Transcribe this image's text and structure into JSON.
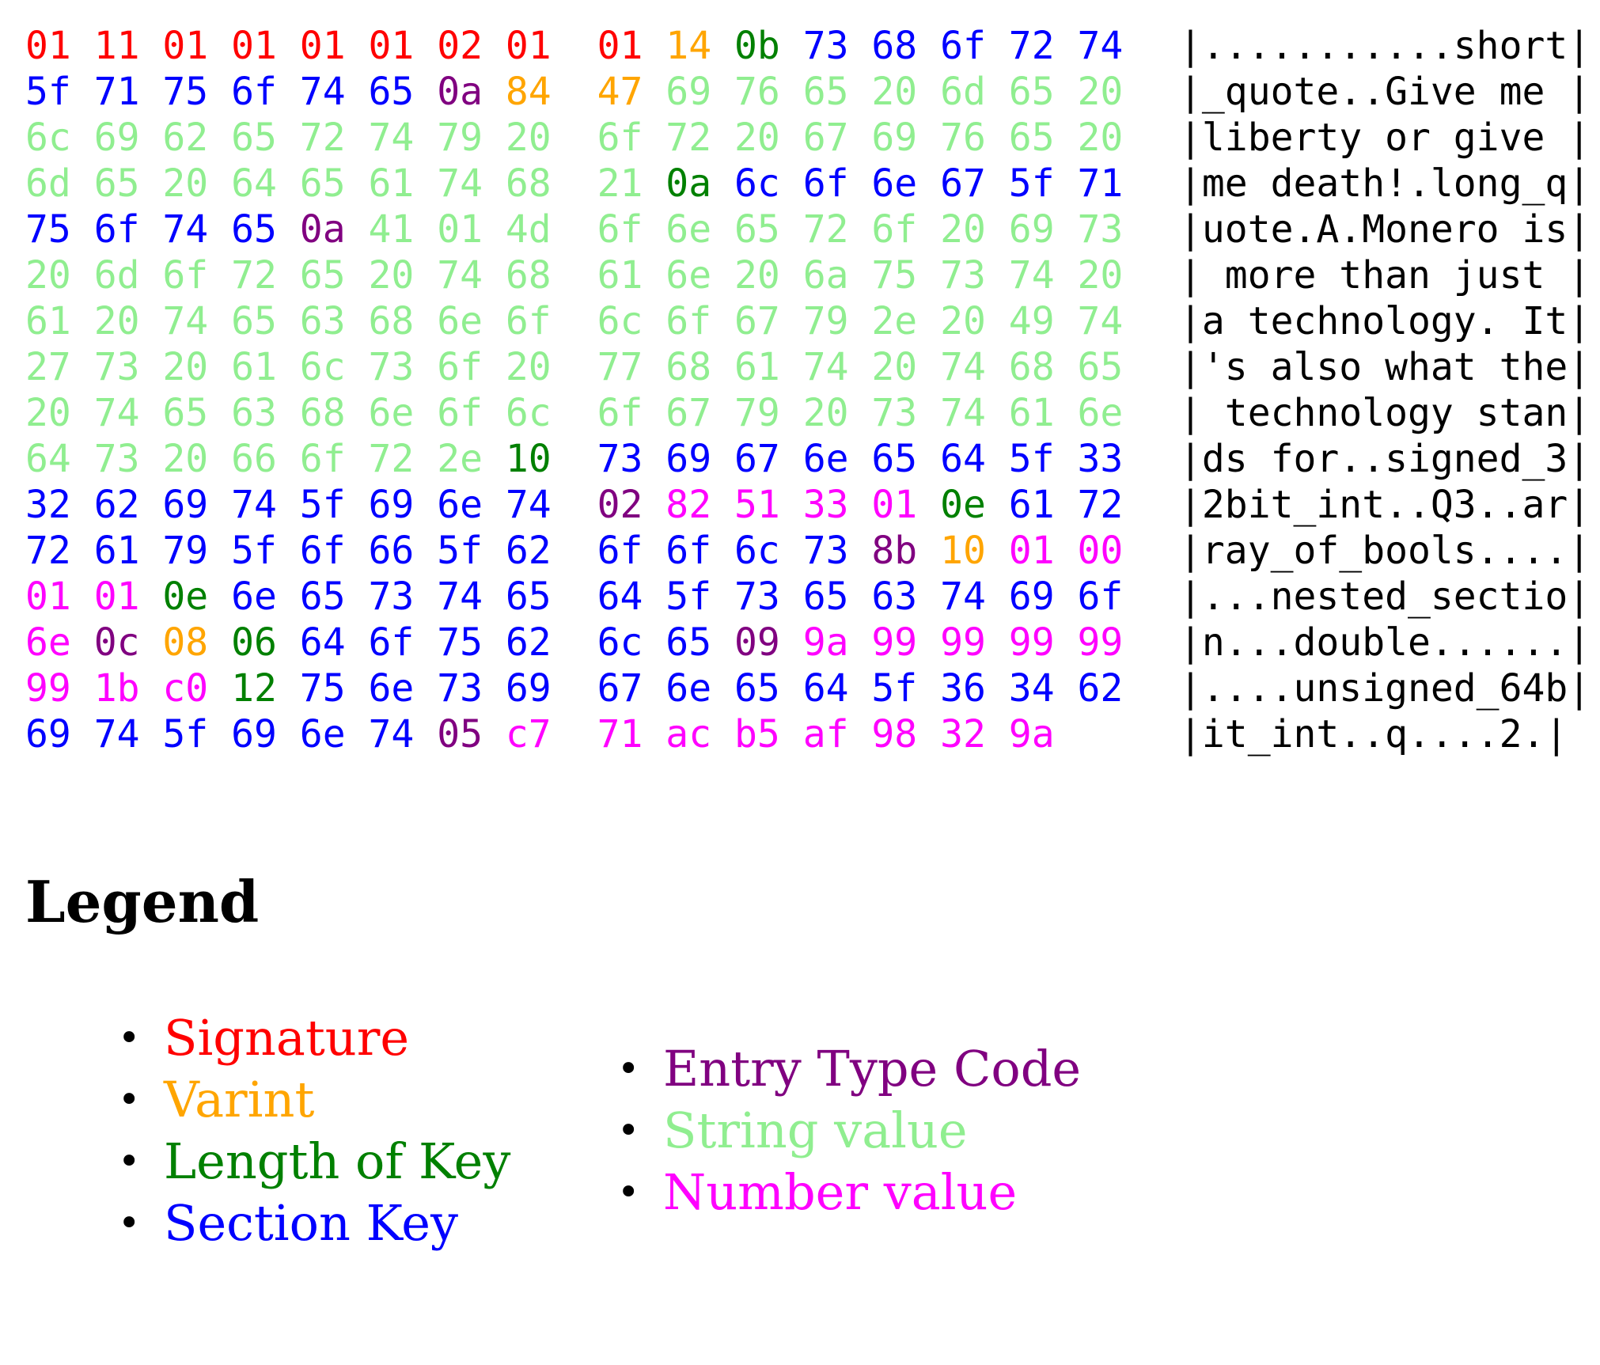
{
  "colors": {
    "S": "#ff0000",
    "V": "#ffa500",
    "L": "#008000",
    "K": "#0000ff",
    "T": "#800080",
    "s": "#90ee90",
    "N": "#ff00ff"
  },
  "rows": [
    {
      "hex": [
        "01",
        "11",
        "01",
        "01",
        "01",
        "01",
        "02",
        "01",
        "01",
        "14",
        "0b",
        "73",
        "68",
        "6f",
        "72",
        "74"
      ],
      "kinds": "SSSSSSSSSVLKKKKK",
      "ascii": "|...........short|"
    },
    {
      "hex": [
        "5f",
        "71",
        "75",
        "6f",
        "74",
        "65",
        "0a",
        "84",
        "47",
        "69",
        "76",
        "65",
        "20",
        "6d",
        "65",
        "20"
      ],
      "kinds": "KKKKKKTVVsssssss",
      "ascii": "|_quote..Give me |"
    },
    {
      "hex": [
        "6c",
        "69",
        "62",
        "65",
        "72",
        "74",
        "79",
        "20",
        "6f",
        "72",
        "20",
        "67",
        "69",
        "76",
        "65",
        "20"
      ],
      "kinds": "ssssssssssssssss",
      "ascii": "|liberty or give |"
    },
    {
      "hex": [
        "6d",
        "65",
        "20",
        "64",
        "65",
        "61",
        "74",
        "68",
        "21",
        "0a",
        "6c",
        "6f",
        "6e",
        "67",
        "5f",
        "71"
      ],
      "kinds": "sssssssssLKKKKKK",
      "ascii": "|me death!.long_q|"
    },
    {
      "hex": [
        "75",
        "6f",
        "74",
        "65",
        "0a",
        "41",
        "01",
        "4d",
        "6f",
        "6e",
        "65",
        "72",
        "6f",
        "20",
        "69",
        "73"
      ],
      "kinds": "KKKKTsssssssssss",
      "ascii": "|uote.A.Monero is|"
    },
    {
      "hex": [
        "20",
        "6d",
        "6f",
        "72",
        "65",
        "20",
        "74",
        "68",
        "61",
        "6e",
        "20",
        "6a",
        "75",
        "73",
        "74",
        "20"
      ],
      "kinds": "ssssssssssssssss",
      "ascii": "| more than just |"
    },
    {
      "hex": [
        "61",
        "20",
        "74",
        "65",
        "63",
        "68",
        "6e",
        "6f",
        "6c",
        "6f",
        "67",
        "79",
        "2e",
        "20",
        "49",
        "74"
      ],
      "kinds": "ssssssssssssssss",
      "ascii": "|a technology. It|"
    },
    {
      "hex": [
        "27",
        "73",
        "20",
        "61",
        "6c",
        "73",
        "6f",
        "20",
        "77",
        "68",
        "61",
        "74",
        "20",
        "74",
        "68",
        "65"
      ],
      "kinds": "ssssssssssssssss",
      "ascii": "|'s also what the|"
    },
    {
      "hex": [
        "20",
        "74",
        "65",
        "63",
        "68",
        "6e",
        "6f",
        "6c",
        "6f",
        "67",
        "79",
        "20",
        "73",
        "74",
        "61",
        "6e"
      ],
      "kinds": "ssssssssssssssss",
      "ascii": "| technology stan|"
    },
    {
      "hex": [
        "64",
        "73",
        "20",
        "66",
        "6f",
        "72",
        "2e",
        "10",
        "73",
        "69",
        "67",
        "6e",
        "65",
        "64",
        "5f",
        "33"
      ],
      "kinds": "sssssssLKKKKKKKK",
      "ascii": "|ds for..signed_3|"
    },
    {
      "hex": [
        "32",
        "62",
        "69",
        "74",
        "5f",
        "69",
        "6e",
        "74",
        "02",
        "82",
        "51",
        "33",
        "01",
        "0e",
        "61",
        "72"
      ],
      "kinds": "KKKKKKKKTNNNNLKK",
      "ascii": "|2bit_int..Q3..ar|"
    },
    {
      "hex": [
        "72",
        "61",
        "79",
        "5f",
        "6f",
        "66",
        "5f",
        "62",
        "6f",
        "6f",
        "6c",
        "73",
        "8b",
        "10",
        "01",
        "00"
      ],
      "kinds": "KKKKKKKKKKKKTVNN",
      "ascii": "|ray_of_bools....|"
    },
    {
      "hex": [
        "01",
        "01",
        "0e",
        "6e",
        "65",
        "73",
        "74",
        "65",
        "64",
        "5f",
        "73",
        "65",
        "63",
        "74",
        "69",
        "6f"
      ],
      "kinds": "NNLKKKKKKKKKKKKK",
      "ascii": "|...nested_sectio|"
    },
    {
      "hex": [
        "6e",
        "0c",
        "08",
        "06",
        "64",
        "6f",
        "75",
        "62",
        "6c",
        "65",
        "09",
        "9a",
        "99",
        "99",
        "99",
        "99"
      ],
      "kinds": "NTVLKKKKKKTNNNNN",
      "ascii": "|n...double......|"
    },
    {
      "hex": [
        "99",
        "1b",
        "c0",
        "12",
        "75",
        "6e",
        "73",
        "69",
        "67",
        "6e",
        "65",
        "64",
        "5f",
        "36",
        "34",
        "62"
      ],
      "kinds": "NNNLKKKKKKKKKKKK",
      "ascii": "|....unsigned_64b|"
    },
    {
      "hex": [
        "69",
        "74",
        "5f",
        "69",
        "6e",
        "74",
        "05",
        "c7",
        "71",
        "ac",
        "b5",
        "af",
        "98",
        "32",
        "9a"
      ],
      "kinds": "KKKKKKTNNNNNNNN",
      "ascii": "|it_int..q....2.|"
    }
  ],
  "legend": {
    "title": "Legend",
    "left": [
      {
        "label": "Signature",
        "kind": "S"
      },
      {
        "label": "Varint",
        "kind": "V"
      },
      {
        "label": "Length of Key",
        "kind": "L"
      },
      {
        "label": "Section Key",
        "kind": "K"
      }
    ],
    "right": [
      {
        "label": "Entry Type Code",
        "kind": "T"
      },
      {
        "label": "String value",
        "kind": "s"
      },
      {
        "label": "Number value",
        "kind": "N"
      }
    ],
    "bullet": "•"
  }
}
